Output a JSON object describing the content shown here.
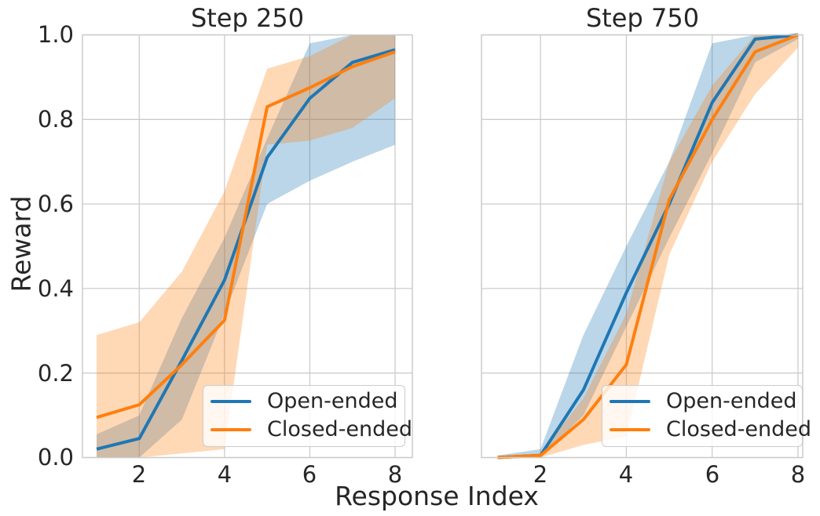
{
  "figure": {
    "xlabel": "Response Index",
    "ylabel": "Reward",
    "background_color": "#ffffff",
    "text_color": "#262626",
    "grid_color": "#cccccc"
  },
  "chart_data": [
    {
      "type": "line",
      "title": "Step 250",
      "x": [
        1,
        2,
        3,
        4,
        5,
        6,
        7,
        8
      ],
      "xticks": [
        "2",
        "4",
        "6",
        "8"
      ],
      "yticks": [
        "0.0",
        "0.2",
        "0.4",
        "0.6",
        "0.8",
        "1.0"
      ],
      "xlabel": "Response Index",
      "ylabel": "Reward",
      "ylim": [
        0,
        1
      ],
      "grid": true,
      "legend_position": "lower right",
      "band_opacity": 0.3,
      "series": [
        {
          "name": "Open-ended",
          "color": "#1f77b4",
          "values": [
            0.02,
            0.045,
            0.23,
            0.42,
            0.71,
            0.85,
            0.935,
            0.965
          ],
          "band_low": [
            0.0,
            0.0,
            0.09,
            0.34,
            0.6,
            0.655,
            0.7,
            0.74
          ],
          "band_high": [
            0.055,
            0.1,
            0.33,
            0.52,
            0.755,
            0.98,
            1.0,
            1.0
          ]
        },
        {
          "name": "Closed-ended",
          "color": "#ff7f0e",
          "values": [
            0.095,
            0.125,
            0.22,
            0.325,
            0.83,
            0.875,
            0.925,
            0.96
          ],
          "band_low": [
            0.0,
            0.0,
            0.01,
            0.02,
            0.74,
            0.75,
            0.78,
            0.85
          ],
          "band_high": [
            0.29,
            0.32,
            0.44,
            0.63,
            0.92,
            0.95,
            1.0,
            1.0
          ]
        }
      ]
    },
    {
      "type": "line",
      "title": "Step 750",
      "x": [
        1,
        2,
        3,
        4,
        5,
        6,
        7,
        8
      ],
      "xticks": [
        "2",
        "4",
        "6",
        "8"
      ],
      "yticks": [
        "0.0",
        "0.2",
        "0.4",
        "0.6",
        "0.8",
        "1.0"
      ],
      "xlabel": "Response Index",
      "ylabel": "Reward",
      "ylim": [
        0,
        1
      ],
      "grid": true,
      "legend_position": "lower right",
      "band_opacity": 0.3,
      "series": [
        {
          "name": "Open-ended",
          "color": "#1f77b4",
          "values": [
            0.0,
            0.005,
            0.16,
            0.39,
            0.6,
            0.84,
            0.99,
            1.0
          ],
          "band_low": [
            0.0,
            0.0,
            0.1,
            0.31,
            0.52,
            0.72,
            0.935,
            0.99
          ],
          "band_high": [
            0.005,
            0.02,
            0.29,
            0.5,
            0.7,
            0.98,
            1.0,
            1.0
          ]
        },
        {
          "name": "Closed-ended",
          "color": "#ff7f0e",
          "values": [
            0.0,
            0.005,
            0.09,
            0.22,
            0.61,
            0.8,
            0.96,
            1.0
          ],
          "band_low": [
            0.0,
            0.0,
            0.03,
            0.05,
            0.48,
            0.7,
            0.86,
            0.97
          ],
          "band_high": [
            0.005,
            0.01,
            0.14,
            0.34,
            0.7,
            0.88,
            1.0,
            1.0
          ]
        }
      ]
    }
  ]
}
